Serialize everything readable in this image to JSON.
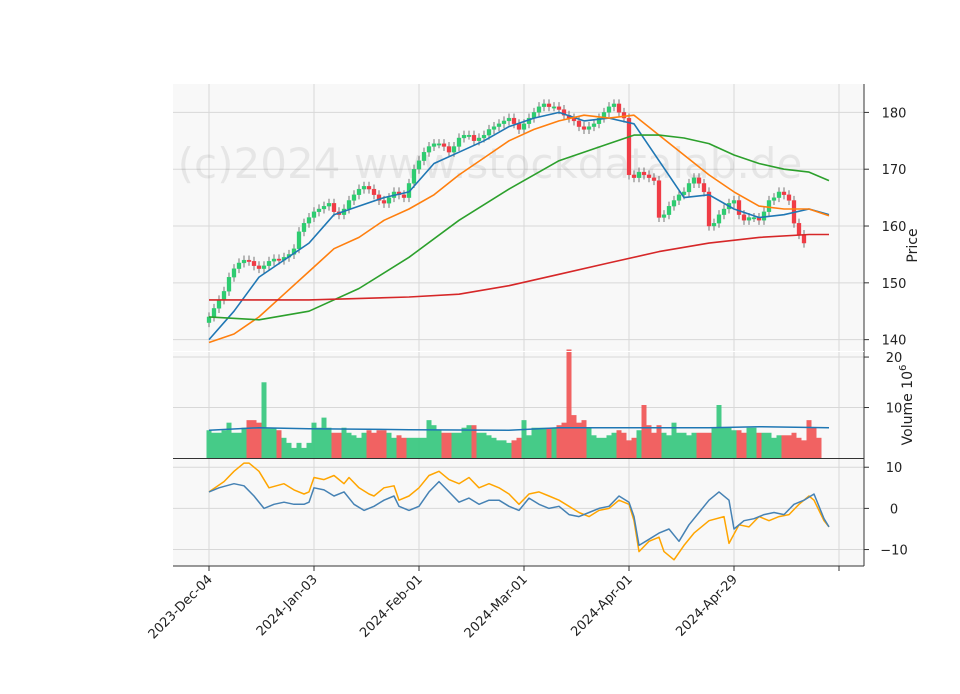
{
  "watermark": "(c)2024 www.stockdatalab.de",
  "chart_data": {
    "type": "candlestick",
    "x_ticks": [
      "2023-Dec-04",
      "2024-Jan-03",
      "2024-Feb-01",
      "2024-Mar-01",
      "2024-Apr-01",
      "2024-Apr-29"
    ],
    "x_tick_index": [
      0,
      21,
      42,
      63,
      84,
      105
    ],
    "price_panel": {
      "ylabel": "Price",
      "ylim": [
        138,
        185
      ],
      "yticks": [
        140,
        150,
        160,
        170,
        180
      ],
      "close": [
        144.0,
        145.5,
        147.0,
        148.5,
        151.0,
        152.5,
        153.5,
        154.0,
        153.8,
        153.0,
        152.5,
        153.0,
        153.8,
        154.2,
        154.0,
        154.5,
        155.0,
        156.0,
        159.0,
        160.5,
        161.5,
        162.5,
        163.0,
        163.5,
        164.0,
        162.5,
        162.0,
        163.0,
        164.5,
        165.5,
        166.5,
        167.0,
        166.5,
        165.5,
        164.5,
        164.0,
        165.0,
        166.0,
        165.5,
        165.0,
        167.5,
        170.0,
        171.5,
        173.0,
        174.0,
        174.5,
        174.5,
        174.0,
        173.0,
        174.0,
        175.5,
        176.0,
        176.0,
        175.0,
        175.5,
        176.0,
        177.0,
        177.5,
        178.0,
        178.5,
        179.0,
        178.0,
        177.0,
        178.0,
        179.0,
        180.0,
        181.0,
        181.5,
        181.0,
        181.0,
        180.5,
        179.5,
        179.0,
        178.5,
        177.5,
        177.0,
        177.5,
        178.0,
        179.0,
        180.0,
        181.0,
        181.5,
        180.0,
        179.0,
        169.0,
        168.5,
        169.5,
        169.0,
        168.5,
        168.0,
        161.5,
        162.0,
        163.5,
        164.5,
        165.5,
        166.0,
        167.5,
        168.5,
        167.5,
        166.0,
        160.0,
        160.5,
        162.0,
        163.0,
        164.0,
        164.5,
        162.0,
        161.0,
        161.5,
        161.5,
        161.0,
        162.5,
        164.5,
        165.0,
        166.0,
        165.5,
        164.5,
        160.5,
        158.5,
        157.0
      ],
      "ma_lines": [
        {
          "color": "#1f77b4",
          "points": [
            [
              0,
              140.0
            ],
            [
              5,
              145.0
            ],
            [
              10,
              151.0
            ],
            [
              15,
              154.0
            ],
            [
              20,
              157.0
            ],
            [
              25,
              162.0
            ],
            [
              30,
              163.5
            ],
            [
              35,
              165.0
            ],
            [
              40,
              166.0
            ],
            [
              45,
              171.0
            ],
            [
              50,
              173.0
            ],
            [
              55,
              175.0
            ],
            [
              60,
              177.5
            ],
            [
              65,
              179.0
            ],
            [
              70,
              180.0
            ],
            [
              75,
              178.5
            ],
            [
              80,
              179.0
            ],
            [
              85,
              178.0
            ],
            [
              90,
              171.5
            ],
            [
              95,
              165.0
            ],
            [
              100,
              165.5
            ],
            [
              105,
              163.0
            ],
            [
              110,
              161.5
            ],
            [
              115,
              162.0
            ],
            [
              120,
              163.0
            ],
            [
              124,
              162.0
            ]
          ]
        },
        {
          "color": "#ff7f0e",
          "points": [
            [
              0,
              139.5
            ],
            [
              5,
              141.0
            ],
            [
              10,
              144.0
            ],
            [
              15,
              148.0
            ],
            [
              20,
              152.0
            ],
            [
              25,
              156.0
            ],
            [
              30,
              158.0
            ],
            [
              35,
              161.0
            ],
            [
              40,
              163.0
            ],
            [
              45,
              165.5
            ],
            [
              50,
              169.0
            ],
            [
              55,
              172.0
            ],
            [
              60,
              175.0
            ],
            [
              65,
              177.0
            ],
            [
              70,
              178.5
            ],
            [
              75,
              179.5
            ],
            [
              80,
              179.0
            ],
            [
              85,
              179.5
            ],
            [
              90,
              176.0
            ],
            [
              95,
              172.5
            ],
            [
              100,
              169.0
            ],
            [
              105,
              166.0
            ],
            [
              110,
              163.5
            ],
            [
              115,
              163.0
            ],
            [
              120,
              163.0
            ],
            [
              124,
              161.8
            ]
          ]
        },
        {
          "color": "#2ca02c",
          "points": [
            [
              0,
              144.0
            ],
            [
              10,
              143.5
            ],
            [
              20,
              145.0
            ],
            [
              30,
              149.0
            ],
            [
              40,
              154.5
            ],
            [
              50,
              161.0
            ],
            [
              60,
              166.5
            ],
            [
              70,
              171.5
            ],
            [
              80,
              174.5
            ],
            [
              85,
              176.0
            ],
            [
              90,
              176.0
            ],
            [
              95,
              175.5
            ],
            [
              100,
              174.5
            ],
            [
              105,
              172.5
            ],
            [
              110,
              171.0
            ],
            [
              115,
              170.0
            ],
            [
              120,
              169.5
            ],
            [
              124,
              168.0
            ]
          ]
        },
        {
          "color": "#d62728",
          "points": [
            [
              0,
              147.0
            ],
            [
              20,
              147.0
            ],
            [
              40,
              147.5
            ],
            [
              50,
              148.0
            ],
            [
              60,
              149.5
            ],
            [
              70,
              151.5
            ],
            [
              80,
              153.5
            ],
            [
              90,
              155.5
            ],
            [
              100,
              157.0
            ],
            [
              110,
              158.0
            ],
            [
              120,
              158.5
            ],
            [
              124,
              158.5
            ]
          ]
        }
      ]
    },
    "volume_panel": {
      "ylabel": "Volume  10",
      "ylabel_exp": "6",
      "ylim": [
        0,
        21
      ],
      "yticks": [
        10,
        20
      ],
      "values": [
        5.5,
        5.0,
        5.0,
        5.5,
        7.0,
        5.0,
        5.0,
        6.0,
        7.5,
        7.5,
        7.0,
        15.0,
        6.0,
        6.0,
        5.5,
        4.0,
        3.0,
        2.0,
        3.0,
        2.0,
        3.0,
        7.0,
        6.0,
        8.0,
        6.0,
        5.0,
        5.0,
        6.0,
        5.0,
        4.5,
        4.0,
        5.0,
        5.5,
        5.0,
        5.5,
        5.5,
        5.0,
        4.0,
        4.5,
        4.0,
        4.0,
        4.0,
        4.0,
        4.0,
        7.5,
        6.5,
        5.5,
        5.0,
        5.0,
        5.0,
        5.0,
        6.0,
        6.5,
        6.5,
        5.0,
        5.0,
        4.5,
        4.0,
        3.5,
        3.5,
        3.0,
        3.5,
        4.0,
        7.5,
        4.5,
        6.0,
        6.0,
        6.0,
        6.0,
        6.0,
        6.5,
        7.0,
        21.5,
        8.5,
        7.0,
        7.5,
        6.0,
        4.5,
        4.0,
        4.0,
        4.5,
        5.0,
        5.5,
        5.0,
        3.5,
        4.0,
        5.5,
        10.5,
        6.5,
        5.0,
        6.5,
        5.0,
        4.5,
        7.0,
        5.0,
        5.0,
        4.5,
        5.0,
        5.0,
        5.0,
        5.0,
        6.0,
        10.5,
        6.0,
        6.0,
        5.5,
        5.5,
        5.0,
        6.0,
        6.0,
        5.0,
        5.0,
        5.0,
        4.0,
        4.5,
        4.5,
        4.5,
        5.0,
        4.0,
        3.5,
        7.5,
        6.0,
        4.0
      ],
      "avg_points": [
        [
          0,
          5.5
        ],
        [
          10,
          6.0
        ],
        [
          20,
          5.8
        ],
        [
          40,
          5.6
        ],
        [
          60,
          5.5
        ],
        [
          70,
          6.0
        ],
        [
          80,
          6.0
        ],
        [
          90,
          6.0
        ],
        [
          100,
          6.0
        ],
        [
          110,
          6.2
        ],
        [
          124,
          6.0
        ]
      ]
    },
    "oscillator_panel": {
      "ylim": [
        -14,
        12
      ],
      "yticks": [
        10,
        0,
        -10
      ],
      "series": [
        {
          "color": "#ffa500",
          "points": [
            [
              0,
              4.0
            ],
            [
              3,
              6.5
            ],
            [
              5,
              9.0
            ],
            [
              7,
              11.0
            ],
            [
              8,
              11.0
            ],
            [
              10,
              9.0
            ],
            [
              12,
              5.0
            ],
            [
              15,
              6.0
            ],
            [
              17,
              4.5
            ],
            [
              19,
              3.5
            ],
            [
              20,
              4.0
            ],
            [
              21,
              7.5
            ],
            [
              23,
              7.0
            ],
            [
              25,
              8.0
            ],
            [
              27,
              6.0
            ],
            [
              28,
              7.5
            ],
            [
              30,
              5.0
            ],
            [
              32,
              3.5
            ],
            [
              33,
              3.0
            ],
            [
              35,
              5.0
            ],
            [
              37,
              5.5
            ],
            [
              38,
              2.0
            ],
            [
              40,
              3.0
            ],
            [
              42,
              5.0
            ],
            [
              44,
              8.0
            ],
            [
              46,
              9.0
            ],
            [
              48,
              7.0
            ],
            [
              50,
              6.0
            ],
            [
              52,
              7.5
            ],
            [
              54,
              5.0
            ],
            [
              56,
              6.0
            ],
            [
              58,
              5.0
            ],
            [
              60,
              3.5
            ],
            [
              62,
              1.0
            ],
            [
              64,
              3.5
            ],
            [
              66,
              4.0
            ],
            [
              68,
              3.0
            ],
            [
              70,
              2.0
            ],
            [
              72,
              0.5
            ],
            [
              74,
              -1.0
            ],
            [
              76,
              -2.0
            ],
            [
              78,
              -0.5
            ],
            [
              80,
              0.0
            ],
            [
              82,
              2.0
            ],
            [
              84,
              1.0
            ],
            [
              85,
              -3.0
            ],
            [
              86,
              -10.5
            ],
            [
              88,
              -8.0
            ],
            [
              90,
              -7.0
            ],
            [
              91,
              -10.5
            ],
            [
              93,
              -12.5
            ],
            [
              95,
              -9.0
            ],
            [
              97,
              -6.0
            ],
            [
              100,
              -3.0
            ],
            [
              103,
              -2.0
            ],
            [
              104,
              -8.5
            ],
            [
              106,
              -4.0
            ],
            [
              108,
              -4.5
            ],
            [
              110,
              -2.0
            ],
            [
              112,
              -3.0
            ],
            [
              114,
              -2.0
            ],
            [
              116,
              -1.5
            ],
            [
              118,
              1.0
            ],
            [
              120,
              3.0
            ],
            [
              121,
              2.0
            ],
            [
              123,
              -3.0
            ],
            [
              124,
              -4.5
            ]
          ]
        },
        {
          "color": "#4682b4",
          "points": [
            [
              0,
              4.0
            ],
            [
              2,
              5.0
            ],
            [
              5,
              6.0
            ],
            [
              7,
              5.5
            ],
            [
              9,
              3.0
            ],
            [
              11,
              0.0
            ],
            [
              13,
              1.0
            ],
            [
              15,
              1.5
            ],
            [
              17,
              1.0
            ],
            [
              19,
              1.0
            ],
            [
              20,
              1.5
            ],
            [
              21,
              5.0
            ],
            [
              23,
              4.5
            ],
            [
              25,
              3.0
            ],
            [
              27,
              4.0
            ],
            [
              29,
              1.0
            ],
            [
              31,
              -0.5
            ],
            [
              33,
              0.5
            ],
            [
              35,
              2.0
            ],
            [
              37,
              3.0
            ],
            [
              38,
              0.5
            ],
            [
              40,
              -0.5
            ],
            [
              42,
              0.5
            ],
            [
              44,
              4.0
            ],
            [
              46,
              6.5
            ],
            [
              48,
              4.0
            ],
            [
              50,
              1.5
            ],
            [
              52,
              2.5
            ],
            [
              54,
              1.0
            ],
            [
              56,
              2.0
            ],
            [
              58,
              2.0
            ],
            [
              60,
              0.5
            ],
            [
              62,
              -0.5
            ],
            [
              64,
              2.5
            ],
            [
              66,
              1.0
            ],
            [
              68,
              0.0
            ],
            [
              70,
              0.5
            ],
            [
              72,
              -1.5
            ],
            [
              74,
              -2.0
            ],
            [
              76,
              -1.0
            ],
            [
              78,
              0.0
            ],
            [
              80,
              0.5
            ],
            [
              82,
              3.0
            ],
            [
              84,
              1.5
            ],
            [
              85,
              -2.0
            ],
            [
              86,
              -9.0
            ],
            [
              88,
              -7.5
            ],
            [
              90,
              -6.0
            ],
            [
              92,
              -5.0
            ],
            [
              94,
              -8.0
            ],
            [
              96,
              -4.0
            ],
            [
              98,
              -1.0
            ],
            [
              100,
              2.0
            ],
            [
              102,
              4.0
            ],
            [
              104,
              2.0
            ],
            [
              105,
              -5.0
            ],
            [
              107,
              -3.0
            ],
            [
              109,
              -2.5
            ],
            [
              111,
              -1.5
            ],
            [
              113,
              -1.0
            ],
            [
              115,
              -1.5
            ],
            [
              117,
              1.0
            ],
            [
              119,
              2.0
            ],
            [
              121,
              3.5
            ],
            [
              123,
              -2.5
            ],
            [
              124,
              -4.5
            ]
          ]
        }
      ]
    }
  }
}
